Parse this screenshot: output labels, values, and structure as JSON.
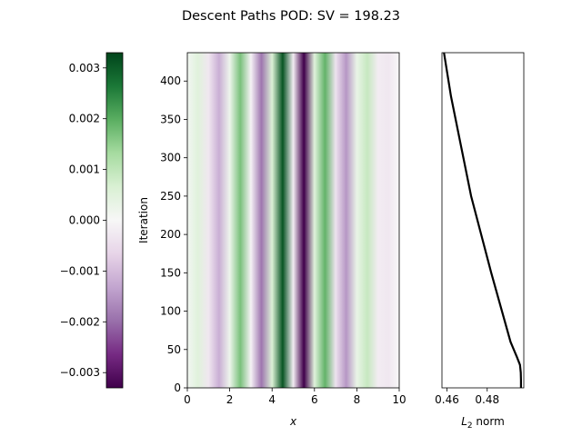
{
  "figure": {
    "title": "Descent Paths POD: SV = 198.23"
  },
  "chart_data": [
    {
      "type": "heatmap",
      "name": "mode-field",
      "xlabel": "x",
      "ylabel": "Iteration",
      "xlim": [
        0,
        10
      ],
      "ylim": [
        0,
        437
      ],
      "xticks": [
        0,
        2,
        4,
        6,
        8,
        10
      ],
      "xtick_labels": [
        "0",
        "2",
        "4",
        "6",
        "8",
        "10"
      ],
      "yticks": [
        0,
        50,
        100,
        150,
        200,
        250,
        300,
        350,
        400
      ],
      "ytick_labels": [
        "0",
        "50",
        "100",
        "150",
        "200",
        "250",
        "300",
        "350",
        "400"
      ],
      "colormap": "PRGn",
      "colormap_stops": [
        "#40004b",
        "#762a83",
        "#9970ab",
        "#c2a5cf",
        "#e7d4e8",
        "#f7f7f7",
        "#d9f0d3",
        "#a6dba0",
        "#5aae61",
        "#1b7837",
        "#00441b"
      ],
      "vmin": -0.0033,
      "vmax": 0.0033,
      "profile_x": [
        0,
        0.5,
        1.0,
        1.5,
        2.0,
        2.5,
        3.0,
        3.5,
        4.0,
        4.5,
        5.0,
        5.5,
        6.0,
        6.5,
        7.0,
        7.5,
        8.0,
        8.5,
        9.0,
        9.5,
        10.0
      ],
      "profile_values": [
        0.0001,
        0.0005,
        -0.0003,
        -0.0012,
        0.0002,
        0.0017,
        -0.0001,
        -0.0019,
        0.0006,
        0.0031,
        -0.0002,
        -0.0033,
        0.0005,
        0.0019,
        -0.0004,
        -0.0015,
        0.0003,
        0.0009,
        -0.0002,
        -0.0003,
        0.0
      ]
    },
    {
      "type": "colorbar",
      "name": "colorbar",
      "ylim": [
        -0.0033,
        0.0033
      ],
      "ticks": [
        -0.003,
        -0.002,
        -0.001,
        0.0,
        0.001,
        0.002,
        0.003
      ],
      "tick_labels": [
        "−0.003",
        "−0.002",
        "−0.001",
        "0.000",
        "0.001",
        "0.002",
        "0.003"
      ]
    },
    {
      "type": "line",
      "name": "l2-norm",
      "xlabel": "L2 norm",
      "xlabel_main": "L",
      "xlabel_sub": "2",
      "xlabel_rest": " norm",
      "xlim": [
        0.4575,
        0.4982
      ],
      "ylim": [
        0,
        437
      ],
      "xticks": [
        0.46,
        0.48
      ],
      "xtick_labels": [
        "0.46",
        "0.48"
      ],
      "line_color": "#000000",
      "x": [
        0.4968,
        0.4968,
        0.4967,
        0.4963,
        0.4948,
        0.4916,
        0.482,
        0.472,
        0.462,
        0.4585
      ],
      "y": [
        0,
        10,
        20,
        30,
        40,
        60,
        150,
        250,
        380,
        437
      ]
    }
  ]
}
